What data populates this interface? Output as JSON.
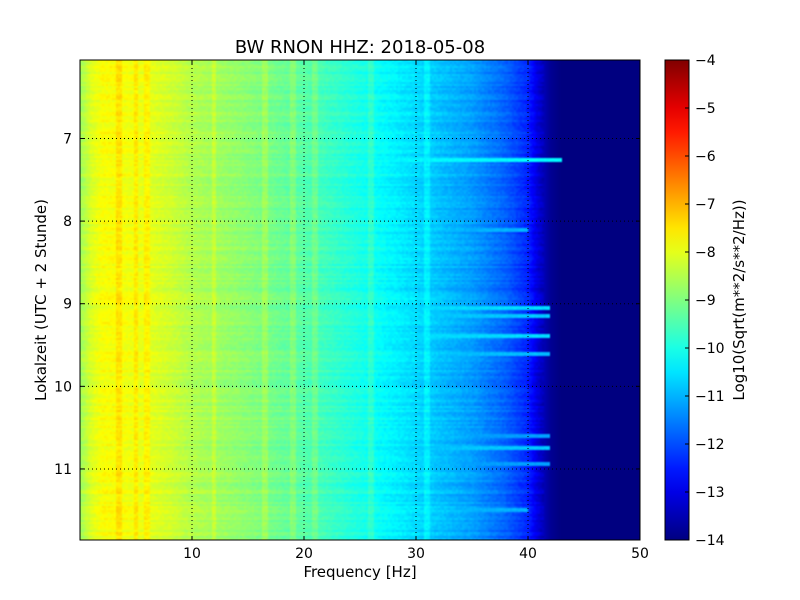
{
  "chart_data": {
    "type": "heatmap",
    "title": "BW RNON HHZ: 2018-05-08",
    "xlabel": "Frequency [Hz]",
    "ylabel": "Lokalzeit (UTC + 2 Stunde)",
    "xlim": [
      0,
      50
    ],
    "ylim": [
      11.86,
      6.05
    ],
    "y_inverted": true,
    "grid": true,
    "x_ticks": [
      10,
      20,
      30,
      40,
      50
    ],
    "x_tick_labels": [
      "10",
      "20",
      "30",
      "40",
      "50"
    ],
    "y_ticks": [
      7,
      8,
      9,
      10,
      11
    ],
    "y_tick_labels": [
      "7",
      "8",
      "9",
      "10",
      "11"
    ],
    "colorbar": {
      "label": "Log10(Sqrt(m**2/s**2/Hz))",
      "range": [
        -14,
        -4
      ],
      "ticks": [
        -4,
        -5,
        -6,
        -7,
        -8,
        -9,
        -10,
        -11,
        -12,
        -13,
        -14
      ],
      "tick_labels": [
        "−4",
        "−5",
        "−6",
        "−7",
        "−8",
        "−9",
        "−10",
        "−11",
        "−12",
        "−13",
        "−14"
      ],
      "colormap": "jet"
    },
    "level_profile": {
      "freq_hz": [
        0,
        1,
        2,
        3,
        5,
        8,
        10,
        15,
        20,
        25,
        30,
        35,
        38,
        40,
        41,
        42,
        43,
        50
      ],
      "value": [
        -8.7,
        -8.1,
        -7.8,
        -7.8,
        -7.9,
        -8.2,
        -8.5,
        -8.9,
        -9.4,
        -10.0,
        -10.6,
        -11.2,
        -11.8,
        -12.4,
        -13.2,
        -13.8,
        -14.0,
        -14.0
      ]
    },
    "vertical_lines_hz": [
      3.5,
      5.0,
      6.0,
      12.0,
      16.5,
      19.0,
      21.0,
      26.0,
      31.0
    ],
    "horizontal_bands": [
      {
        "time": 7.25,
        "freq_range": [
          10,
          43
        ],
        "value": -10.3
      },
      {
        "time": 8.1,
        "freq_range": [
          22,
          40
        ],
        "value": -11.0
      },
      {
        "time": 9.05,
        "freq_range": [
          20,
          42
        ],
        "value": -10.6
      },
      {
        "time": 9.15,
        "freq_range": [
          20,
          42
        ],
        "value": -10.8
      },
      {
        "time": 9.4,
        "freq_range": [
          18,
          42
        ],
        "value": -10.6
      },
      {
        "time": 9.6,
        "freq_range": [
          18,
          42
        ],
        "value": -10.9
      },
      {
        "time": 10.6,
        "freq_range": [
          26,
          42
        ],
        "value": -11.2
      },
      {
        "time": 10.75,
        "freq_range": [
          19,
          42
        ],
        "value": -10.8
      },
      {
        "time": 10.95,
        "freq_range": [
          26,
          42
        ],
        "value": -11.2
      },
      {
        "time": 11.5,
        "freq_range": [
          18,
          40
        ],
        "value": -11.0
      }
    ]
  }
}
